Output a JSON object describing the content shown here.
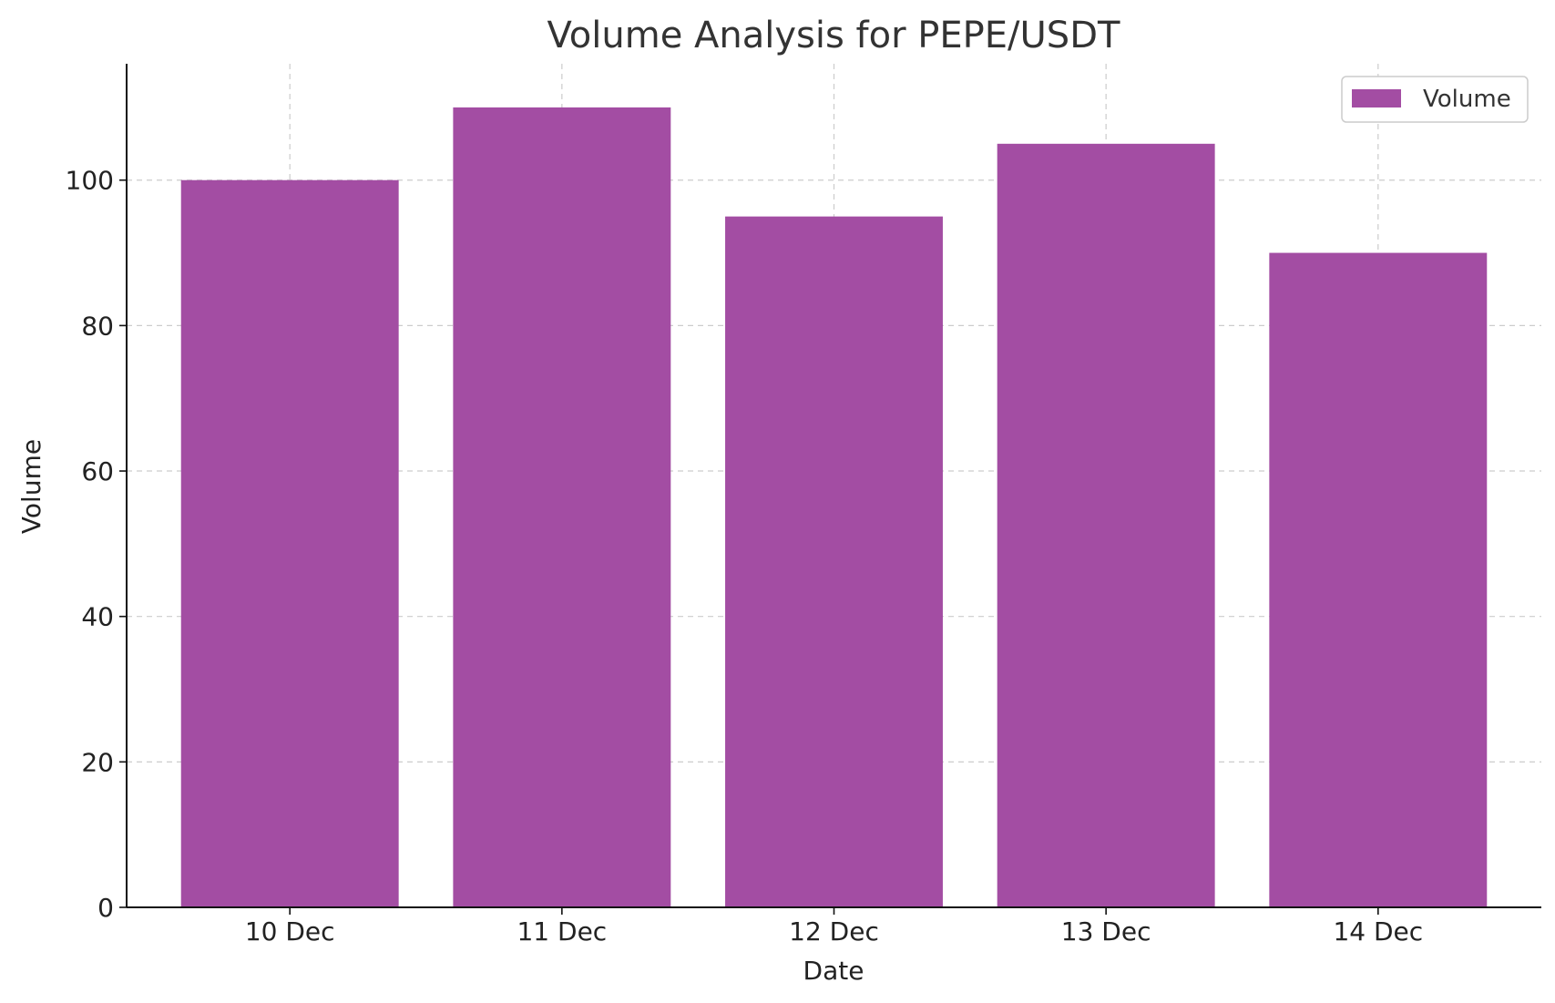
{
  "chart_data": {
    "type": "bar",
    "title": "Volume Analysis for PEPE/USDT",
    "xlabel": "Date",
    "ylabel": "Volume",
    "categories": [
      "10 Dec",
      "11 Dec",
      "12 Dec",
      "13 Dec",
      "14 Dec"
    ],
    "series": [
      {
        "name": "Volume",
        "values": [
          100,
          110,
          95,
          105,
          90
        ]
      }
    ],
    "ylim": [
      0,
      116
    ],
    "yticks": [
      0,
      20,
      40,
      60,
      80,
      100
    ],
    "grid": true,
    "legend": "top-right",
    "bar_color": "#A34DA3"
  }
}
